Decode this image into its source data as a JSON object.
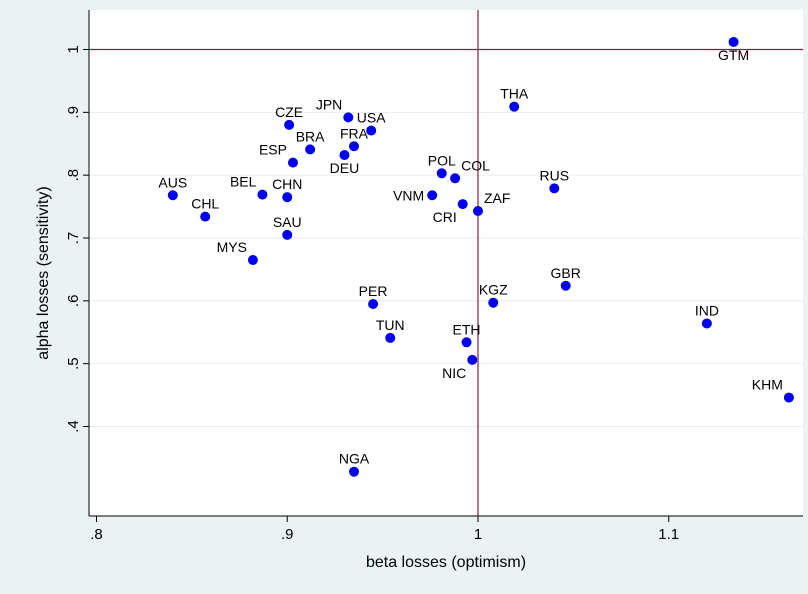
{
  "chart_data": {
    "type": "scatter",
    "title": "",
    "xlabel": "beta losses (optimism)",
    "ylabel": "alpha losses (sensitivity)",
    "xlim": [
      0.8,
      1.165
    ],
    "ylim": [
      0.315,
      1.045
    ],
    "xticks": [
      {
        "value": 0.8,
        "label": ".8"
      },
      {
        "value": 0.9,
        "label": ".9"
      },
      {
        "value": 1.0,
        "label": "1"
      },
      {
        "value": 1.1,
        "label": "1.1"
      }
    ],
    "yticks": [
      {
        "value": 0.4,
        "label": ".4"
      },
      {
        "value": 0.5,
        "label": ".5"
      },
      {
        "value": 0.6,
        "label": ".6"
      },
      {
        "value": 0.7,
        "label": ".7"
      },
      {
        "value": 0.8,
        "label": ".8"
      },
      {
        "value": 0.9,
        "label": ".9"
      },
      {
        "value": 1.0,
        "label": "1"
      }
    ],
    "grid": true,
    "reference_lines": {
      "x": 1.0,
      "y": 1.0
    },
    "colors": {
      "background": "#eaf2f3",
      "plot_area": "#ffffff",
      "marker": "#0000ee",
      "reference": "#8b1a3a",
      "grid": "#e6eef0",
      "text": "#000000"
    },
    "points": [
      {
        "label": "GTM",
        "x": 1.134,
        "y": 1.012,
        "label_pos": "below"
      },
      {
        "label": "THA",
        "x": 1.019,
        "y": 0.909,
        "label_pos": "above"
      },
      {
        "label": "JPN",
        "x": 0.932,
        "y": 0.892,
        "label_pos": "above-left"
      },
      {
        "label": "USA",
        "x": 0.944,
        "y": 0.871,
        "label_pos": "above"
      },
      {
        "label": "CZE",
        "x": 0.901,
        "y": 0.88,
        "label_pos": "above"
      },
      {
        "label": "FRA",
        "x": 0.935,
        "y": 0.846,
        "label_pos": "above"
      },
      {
        "label": "BRA",
        "x": 0.912,
        "y": 0.841,
        "label_pos": "above"
      },
      {
        "label": "DEU",
        "x": 0.93,
        "y": 0.832,
        "label_pos": "below"
      },
      {
        "label": "ESP",
        "x": 0.903,
        "y": 0.82,
        "label_pos": "above-left"
      },
      {
        "label": "POL",
        "x": 0.981,
        "y": 0.803,
        "label_pos": "above"
      },
      {
        "label": "COL",
        "x": 0.988,
        "y": 0.795,
        "label_pos": "above-right"
      },
      {
        "label": "RUS",
        "x": 1.04,
        "y": 0.779,
        "label_pos": "above"
      },
      {
        "label": "AUS",
        "x": 0.84,
        "y": 0.768,
        "label_pos": "above"
      },
      {
        "label": "BEL",
        "x": 0.887,
        "y": 0.769,
        "label_pos": "above-left"
      },
      {
        "label": "CHN",
        "x": 0.9,
        "y": 0.765,
        "label_pos": "above"
      },
      {
        "label": "VNM",
        "x": 0.976,
        "y": 0.768,
        "label_pos": "left"
      },
      {
        "label": "CRI",
        "x": 0.992,
        "y": 0.754,
        "label_pos": "below-left"
      },
      {
        "label": "ZAF",
        "x": 1.0,
        "y": 0.743,
        "label_pos": "above-right"
      },
      {
        "label": "CHL",
        "x": 0.857,
        "y": 0.734,
        "label_pos": "above"
      },
      {
        "label": "SAU",
        "x": 0.9,
        "y": 0.705,
        "label_pos": "above"
      },
      {
        "label": "MYS",
        "x": 0.882,
        "y": 0.665,
        "label_pos": "above-left"
      },
      {
        "label": "GBR",
        "x": 1.046,
        "y": 0.624,
        "label_pos": "above"
      },
      {
        "label": "KGZ",
        "x": 1.008,
        "y": 0.597,
        "label_pos": "above"
      },
      {
        "label": "PER",
        "x": 0.945,
        "y": 0.595,
        "label_pos": "above"
      },
      {
        "label": "IND",
        "x": 1.12,
        "y": 0.564,
        "label_pos": "above"
      },
      {
        "label": "TUN",
        "x": 0.954,
        "y": 0.541,
        "label_pos": "above"
      },
      {
        "label": "ETH",
        "x": 0.994,
        "y": 0.534,
        "label_pos": "above"
      },
      {
        "label": "NIC",
        "x": 0.997,
        "y": 0.506,
        "label_pos": "below-left"
      },
      {
        "label": "KHM",
        "x": 1.163,
        "y": 0.446,
        "label_pos": "above-left"
      },
      {
        "label": "NGA",
        "x": 0.935,
        "y": 0.328,
        "label_pos": "above"
      }
    ]
  }
}
